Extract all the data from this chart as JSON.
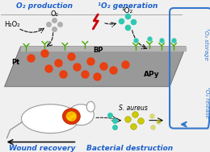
{
  "bg_color": "#f0f0f0",
  "title_left": "O₂ production",
  "title_right": "¹O₂ generation",
  "label_h2o2": "H₂O₂",
  "label_o2": "O₂",
  "label_1o2_top": "¹O₂",
  "label_pt": "Pt",
  "label_bp": "BP",
  "label_apy": "APy",
  "label_saureus": "S. aureus",
  "label_storage": "¹O₂ storage",
  "label_release": "¹O₂ release",
  "label_wound": "Wound recovery",
  "label_bacterial": "Bacterial destruction",
  "plate_color": "#999999",
  "plate_edge": "#666666",
  "dot_red": "#e84010",
  "dot_cyan": "#30c8b0",
  "dot_gray": "#aaaaaa",
  "dot_yellow": "#cccc00",
  "blue_text": "#1a5fcc",
  "blue_arc": "#3377cc",
  "arrow_color": "#111111",
  "lightning_red": "#cc0000",
  "green_y": "#44aa00",
  "white": "#ffffff"
}
